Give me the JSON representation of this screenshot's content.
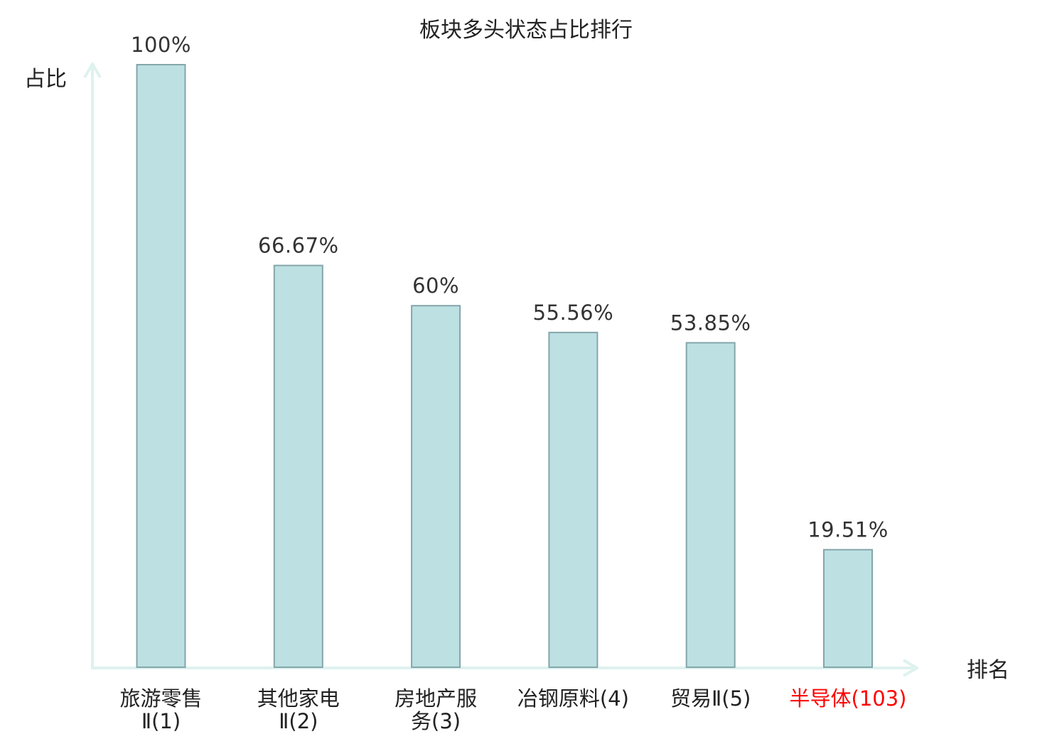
{
  "chart_data": {
    "type": "bar",
    "title": "板块多头状态占比排行",
    "ylabel": "占比",
    "xlabel": "排名",
    "ylim": [
      0,
      100
    ],
    "grid": false,
    "legend": "none",
    "categories": [
      {
        "name": "旅游零售Ⅱ",
        "rank": "(1)",
        "lines": [
          "旅游零售",
          "Ⅱ(1)"
        ],
        "highlight": false
      },
      {
        "name": "其他家电Ⅱ",
        "rank": "(2)",
        "lines": [
          "其他家电",
          "Ⅱ(2)"
        ],
        "highlight": false
      },
      {
        "name": "房地产服务",
        "rank": "(3)",
        "lines": [
          "房地产服",
          "务(3)"
        ],
        "highlight": false
      },
      {
        "name": "冶钢原料",
        "rank": "(4)",
        "lines": [
          "冶钢原料(4)"
        ],
        "highlight": false
      },
      {
        "name": "贸易Ⅱ",
        "rank": "(5)",
        "lines": [
          "贸易Ⅱ(5)"
        ],
        "highlight": false
      },
      {
        "name": "半导体",
        "rank": "(103)",
        "lines": [
          "半导体(103)"
        ],
        "highlight": true
      }
    ],
    "values": [
      100,
      66.67,
      60,
      55.56,
      53.85,
      19.51
    ],
    "value_labels": [
      "100%",
      "66.67%",
      "60%",
      "55.56%",
      "53.85%",
      "19.51%"
    ],
    "colors": {
      "bar_fill": "#bde0e3",
      "bar_stroke": "#84a6aa",
      "axis": "#def2ef",
      "highlight_text": "#ff0000",
      "text": "#222222"
    }
  }
}
